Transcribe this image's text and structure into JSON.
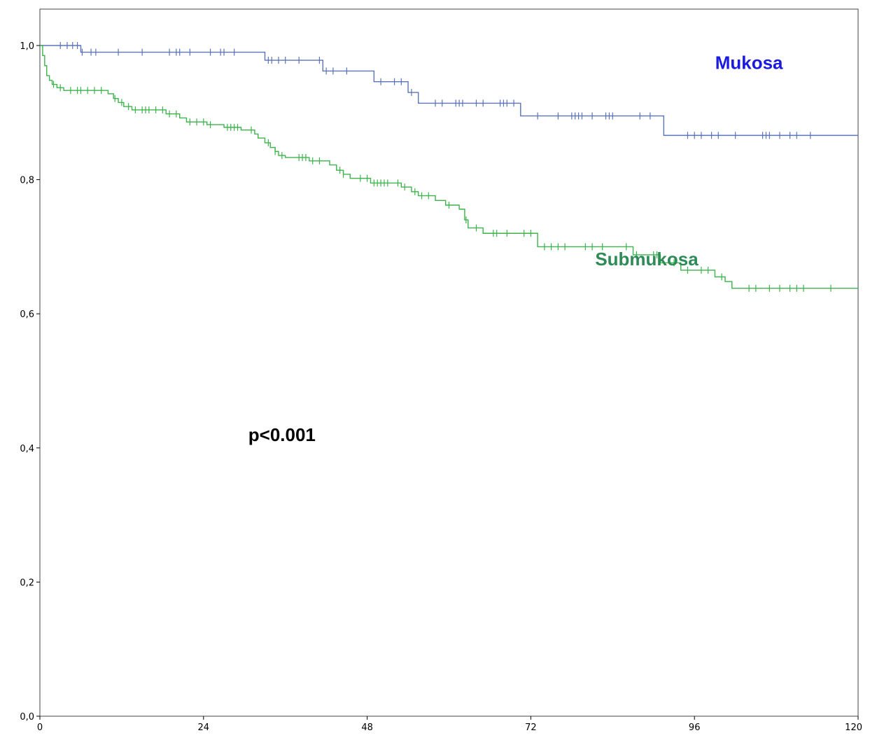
{
  "chart_data": {
    "type": "line",
    "subtype": "kaplan-meier-step",
    "xlim": [
      0,
      120
    ],
    "ylim": [
      0,
      1.0
    ],
    "x_ticks": [
      0,
      24,
      48,
      72,
      96,
      120
    ],
    "x_tick_labels": [
      "0",
      "24",
      "48",
      "72",
      "96",
      "120"
    ],
    "y_ticks": [
      0,
      0.2,
      0.4,
      0.6,
      0.8,
      1.0
    ],
    "y_tick_labels": [
      "0,0",
      "0,2",
      "0,4",
      "0,6",
      "0,8",
      "1,0"
    ],
    "grid": false,
    "series": [
      {
        "name": "Mukosa",
        "color": "#5B73B8",
        "steps": [
          [
            0,
            1.0
          ],
          [
            6,
            0.99
          ],
          [
            33,
            0.978
          ],
          [
            41.5,
            0.962
          ],
          [
            49,
            0.946
          ],
          [
            54,
            0.93
          ],
          [
            55.5,
            0.914
          ],
          [
            70.5,
            0.895
          ],
          [
            91.5,
            0.866
          ],
          [
            120,
            0.866
          ]
        ],
        "censored_x": [
          3,
          4,
          4.8,
          5.5,
          6.2,
          7.5,
          8.2,
          11.5,
          15,
          19,
          20,
          20.5,
          22,
          25,
          26.5,
          27,
          28.5,
          33.5,
          34,
          35,
          36,
          38,
          41,
          42,
          43,
          45,
          50,
          52,
          53,
          54.5,
          58,
          59,
          61,
          61.5,
          62,
          64,
          65,
          67.5,
          68,
          68.5,
          69.5,
          73,
          76,
          78,
          78.5,
          79,
          79.5,
          81,
          83,
          83.5,
          84,
          88,
          89.5,
          95,
          96,
          97,
          98.5,
          99.5,
          102,
          106,
          106.5,
          107,
          108.5,
          110,
          111,
          113
        ],
        "censored_y": [
          1.0,
          1.0,
          1.0,
          1.0,
          0.99,
          0.99,
          0.99,
          0.99,
          0.99,
          0.99,
          0.99,
          0.99,
          0.99,
          0.99,
          0.99,
          0.99,
          0.99,
          0.978,
          0.978,
          0.978,
          0.978,
          0.978,
          0.978,
          0.962,
          0.962,
          0.962,
          0.946,
          0.946,
          0.946,
          0.93,
          0.914,
          0.914,
          0.914,
          0.914,
          0.914,
          0.914,
          0.914,
          0.914,
          0.914,
          0.914,
          0.914,
          0.895,
          0.895,
          0.895,
          0.895,
          0.895,
          0.895,
          0.895,
          0.895,
          0.895,
          0.895,
          0.895,
          0.895,
          0.866,
          0.866,
          0.866,
          0.866,
          0.866,
          0.866,
          0.866,
          0.866,
          0.866,
          0.866,
          0.866,
          0.866,
          0.866
        ]
      },
      {
        "name": "Submukosa",
        "color": "#3CB44B",
        "steps": [
          [
            0,
            1.0
          ],
          [
            0.4,
            0.985
          ],
          [
            0.7,
            0.97
          ],
          [
            1.0,
            0.955
          ],
          [
            1.4,
            0.948
          ],
          [
            1.8,
            0.942
          ],
          [
            2.5,
            0.937
          ],
          [
            3.5,
            0.933
          ],
          [
            10,
            0.928
          ],
          [
            10.8,
            0.921
          ],
          [
            11.5,
            0.915
          ],
          [
            12.3,
            0.909
          ],
          [
            13.5,
            0.904
          ],
          [
            18.5,
            0.898
          ],
          [
            20.5,
            0.892
          ],
          [
            21.5,
            0.886
          ],
          [
            24.5,
            0.882
          ],
          [
            27,
            0.878
          ],
          [
            29.5,
            0.874
          ],
          [
            31.5,
            0.868
          ],
          [
            32,
            0.862
          ],
          [
            33,
            0.855
          ],
          [
            33.8,
            0.848
          ],
          [
            34.5,
            0.842
          ],
          [
            35,
            0.836
          ],
          [
            36,
            0.833
          ],
          [
            39.5,
            0.828
          ],
          [
            42.5,
            0.822
          ],
          [
            43.5,
            0.814
          ],
          [
            44.5,
            0.808
          ],
          [
            45.5,
            0.802
          ],
          [
            48.5,
            0.795
          ],
          [
            53,
            0.789
          ],
          [
            54.5,
            0.782
          ],
          [
            55.5,
            0.776
          ],
          [
            58,
            0.769
          ],
          [
            59.5,
            0.762
          ],
          [
            61.5,
            0.756
          ],
          [
            62.3,
            0.74
          ],
          [
            62.8,
            0.728
          ],
          [
            65,
            0.72
          ],
          [
            73,
            0.7
          ],
          [
            87,
            0.688
          ],
          [
            91,
            0.676
          ],
          [
            94,
            0.665
          ],
          [
            99,
            0.655
          ],
          [
            100.5,
            0.648
          ],
          [
            101.5,
            0.638
          ],
          [
            120,
            0.638
          ]
        ],
        "censored_x": [
          2,
          3,
          4.5,
          5.5,
          6,
          7,
          8,
          9,
          11,
          12,
          13,
          14,
          15,
          15.5,
          16,
          17,
          18,
          19,
          20,
          22,
          23,
          24,
          25,
          27.5,
          28,
          28.5,
          29,
          31,
          33.5,
          34.5,
          35.5,
          38,
          38.5,
          39,
          40,
          41,
          44,
          44.5,
          47,
          48,
          49,
          49.5,
          50,
          50.5,
          51,
          52.5,
          53.5,
          55,
          56,
          57,
          60,
          62.5,
          64,
          66.5,
          67,
          68.5,
          71,
          72,
          74,
          75,
          76,
          77,
          80,
          81,
          82.5,
          86,
          87.5,
          90,
          90.5,
          93,
          95,
          97,
          98,
          100,
          104,
          105,
          107,
          108.5,
          110,
          111,
          112,
          116
        ]
      }
    ],
    "annotations": [
      {
        "text": "Mukosa",
        "x": 104,
        "y": 0.965,
        "color": "#1A1AE0"
      },
      {
        "text": "Submukosa",
        "x": 89,
        "y": 0.672,
        "color": "#2E8B57"
      },
      {
        "text": "p<0.001",
        "x": 35.5,
        "y": 0.41,
        "color": "#000000"
      }
    ]
  }
}
